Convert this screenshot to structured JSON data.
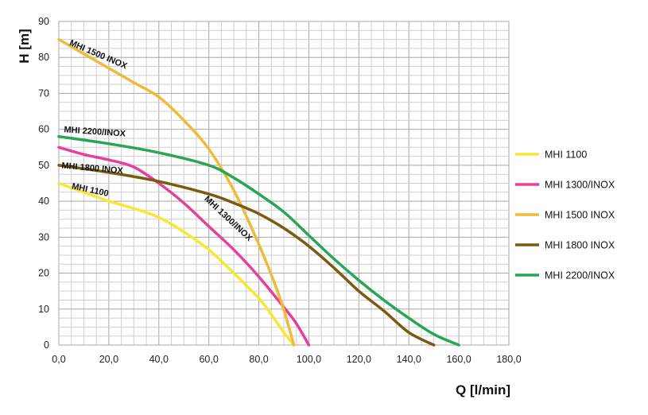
{
  "chart_data": {
    "type": "line",
    "xlabel": "Q [l/min]",
    "ylabel": "H [m]",
    "xlim": [
      0,
      180
    ],
    "ylim": [
      0,
      90
    ],
    "grid": true,
    "legend_position": "right",
    "x_ticks": [
      "0,0",
      "20,0",
      "40,0",
      "60,0",
      "80,0",
      "100,0",
      "120,0",
      "140,0",
      "160,0",
      "180,0"
    ],
    "y_ticks": [
      "0",
      "10",
      "20",
      "30",
      "40",
      "50",
      "60",
      "70",
      "80",
      "90"
    ],
    "series": [
      {
        "name": "MHI 1100",
        "color": "#f5e936",
        "curve_label": "MHI 1100",
        "points": [
          [
            0,
            45
          ],
          [
            10,
            42.5
          ],
          [
            20,
            40
          ],
          [
            30,
            38
          ],
          [
            40,
            35.5
          ],
          [
            50,
            31.5
          ],
          [
            60,
            26.5
          ],
          [
            70,
            20
          ],
          [
            80,
            13
          ],
          [
            85,
            8.5
          ],
          [
            90,
            3.5
          ],
          [
            94,
            0
          ]
        ]
      },
      {
        "name": "MHI 1300/INOX",
        "color": "#e5409a",
        "curve_label": "MHI 1300/INOX",
        "points": [
          [
            0,
            55
          ],
          [
            10,
            53
          ],
          [
            20,
            51.5
          ],
          [
            30,
            49.5
          ],
          [
            40,
            45
          ],
          [
            50,
            39.5
          ],
          [
            60,
            33
          ],
          [
            70,
            26.5
          ],
          [
            80,
            19
          ],
          [
            90,
            10.5
          ],
          [
            95,
            6
          ],
          [
            100,
            0
          ]
        ]
      },
      {
        "name": "MHI 1500 INOX",
        "color": "#eebb3a",
        "curve_label": "MHI 1500 INOX",
        "points": [
          [
            0,
            85
          ],
          [
            10,
            81
          ],
          [
            20,
            77
          ],
          [
            30,
            73
          ],
          [
            40,
            69
          ],
          [
            50,
            62.5
          ],
          [
            60,
            54.5
          ],
          [
            70,
            43
          ],
          [
            80,
            28
          ],
          [
            88,
            14
          ],
          [
            92,
            5
          ],
          [
            94,
            0
          ]
        ]
      },
      {
        "name": "MHI 1800 INOX",
        "color": "#7a5a10",
        "curve_label": "MHI 1800 INOX",
        "points": [
          [
            0,
            50
          ],
          [
            20,
            48
          ],
          [
            40,
            45.5
          ],
          [
            60,
            42
          ],
          [
            70,
            39.5
          ],
          [
            80,
            36.5
          ],
          [
            90,
            32.5
          ],
          [
            100,
            27.5
          ],
          [
            110,
            21.5
          ],
          [
            120,
            15
          ],
          [
            130,
            9.5
          ],
          [
            140,
            3.5
          ],
          [
            150,
            0
          ]
        ]
      },
      {
        "name": "MHI 2200/INOX",
        "color": "#27a656",
        "curve_label": "MHI 2200/INOX",
        "points": [
          [
            0,
            58
          ],
          [
            20,
            56
          ],
          [
            40,
            53.5
          ],
          [
            60,
            50
          ],
          [
            70,
            46.5
          ],
          [
            80,
            42
          ],
          [
            90,
            37
          ],
          [
            100,
            30.5
          ],
          [
            110,
            24
          ],
          [
            120,
            18
          ],
          [
            130,
            12.5
          ],
          [
            140,
            7.5
          ],
          [
            150,
            3
          ],
          [
            160,
            0
          ]
        ]
      }
    ]
  }
}
